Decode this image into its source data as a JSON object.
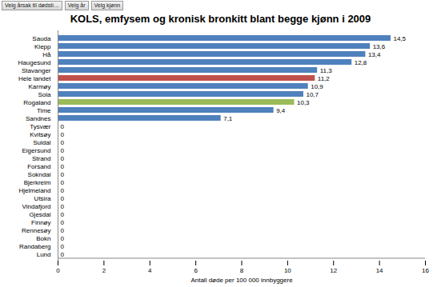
{
  "chart_data": {
    "type": "bar",
    "orientation": "horizontal",
    "title": "KOLS, emfysem og kronisk bronkitt  blant begge kjønn i 2009",
    "annotations": [
      "Velg årsak til dødsti…",
      "Velg år",
      "Velg kjønn"
    ],
    "x_label": "Antall døde per 100 000 innbyggere",
    "categories": [
      "Sauda",
      "Klepp",
      "Hå",
      "Haugesund",
      "Stavanger",
      "Hele landet",
      "Karmøy",
      "Sola",
      "Rogaland",
      "Time",
      "Sandnes",
      "Tysvær",
      "Kvitsøy",
      "Suldal",
      "Eigersund",
      "Strand",
      "Forsand",
      "Sokndal",
      "Bjerkreim",
      "Hjelmeland",
      "Utsira",
      "Vindafjord",
      "Gjesdal",
      "Finnøy",
      "Rennesøy",
      "Bokn",
      "Randaberg",
      "Lund"
    ],
    "values": [
      14.5,
      13.6,
      13.4,
      12.8,
      11.3,
      11.2,
      10.9,
      10.7,
      10.3,
      9.4,
      7.1,
      0,
      0,
      0,
      0,
      0,
      0,
      0,
      0,
      0,
      0,
      0,
      0,
      0,
      0,
      0,
      0,
      0
    ],
    "value_labels": [
      "14,5",
      "13,6",
      "13,4",
      "12,8",
      "11,3",
      "11,2",
      "10,9",
      "10,7",
      "10,3",
      "9,4",
      "7,1",
      "0",
      "0",
      "0",
      "0",
      "0",
      "0",
      "0",
      "0",
      "0",
      "0",
      "0",
      "0",
      "0",
      "0",
      "0",
      "0",
      "0"
    ],
    "colors": [
      "#4f81bd",
      "#4f81bd",
      "#4f81bd",
      "#4f81bd",
      "#4f81bd",
      "#c0504d",
      "#4f81bd",
      "#4f81bd",
      "#9bbb59",
      "#4f81bd",
      "#4f81bd",
      "#4f81bd",
      "#4f81bd",
      "#4f81bd",
      "#4f81bd",
      "#4f81bd",
      "#4f81bd",
      "#4f81bd",
      "#4f81bd",
      "#4f81bd",
      "#4f81bd",
      "#4f81bd",
      "#4f81bd",
      "#4f81bd",
      "#4f81bd",
      "#4f81bd",
      "#4f81bd",
      "#4f81bd"
    ],
    "xlim": [
      0,
      16
    ],
    "xticks": [
      0,
      2,
      4,
      6,
      8,
      10,
      12,
      14,
      16
    ],
    "grid": false,
    "data_labels": true
  }
}
